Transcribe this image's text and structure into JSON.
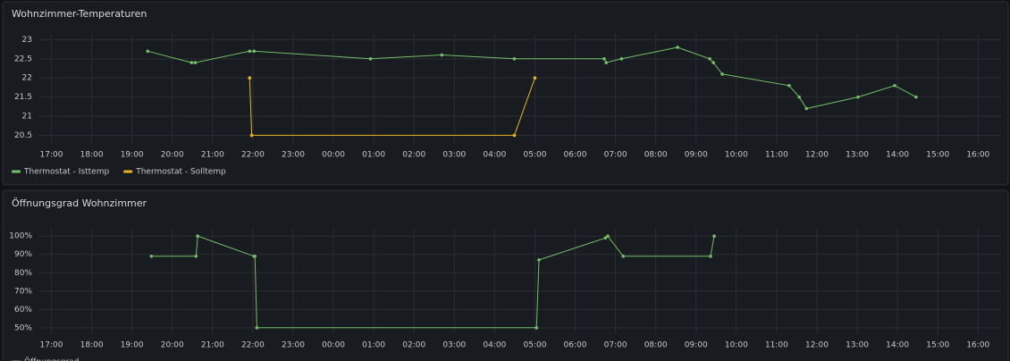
{
  "chart_data": [
    {
      "type": "line",
      "title": "Wohnzimmer-Temperaturen",
      "xlim": [
        16.7,
        40.57
      ],
      "xticks": [
        {
          "value": 17,
          "label": "17:00"
        },
        {
          "value": 18,
          "label": "18:00"
        },
        {
          "value": 19,
          "label": "19:00"
        },
        {
          "value": 20,
          "label": "20:00"
        },
        {
          "value": 21,
          "label": "21:00"
        },
        {
          "value": 22,
          "label": "22:00"
        },
        {
          "value": 23,
          "label": "23:00"
        },
        {
          "value": 24,
          "label": "00:00"
        },
        {
          "value": 25,
          "label": "01:00"
        },
        {
          "value": 26,
          "label": "02:00"
        },
        {
          "value": 27,
          "label": "03:00"
        },
        {
          "value": 28,
          "label": "04:00"
        },
        {
          "value": 29,
          "label": "05:00"
        },
        {
          "value": 30,
          "label": "06:00"
        },
        {
          "value": 31,
          "label": "07:00"
        },
        {
          "value": 32,
          "label": "08:00"
        },
        {
          "value": 33,
          "label": "09:00"
        },
        {
          "value": 34,
          "label": "10:00"
        },
        {
          "value": 35,
          "label": "11:00"
        },
        {
          "value": 36,
          "label": "12:00"
        },
        {
          "value": 37,
          "label": "13:00"
        },
        {
          "value": 38,
          "label": "14:00"
        },
        {
          "value": 39,
          "label": "15:00"
        },
        {
          "value": 40,
          "label": "16:00"
        }
      ],
      "ylim": [
        20.3,
        23.15
      ],
      "yticks": [
        20.5,
        21,
        21.5,
        22,
        22.5,
        23
      ],
      "grid": true,
      "legend": "bottom",
      "series": [
        {
          "name": "Thermostat - Isttemp",
          "color": "#73bf69",
          "x": [
            19.39,
            20.48,
            20.57,
            21.92,
            22.03,
            24.92,
            26.69,
            28.49,
            30.72,
            30.77,
            31.15,
            32.54,
            33.34,
            33.43,
            33.65,
            35.31,
            35.56,
            35.74,
            37.02,
            37.93,
            38.46
          ],
          "values": [
            22.7,
            22.4,
            22.4,
            22.7,
            22.7,
            22.5,
            22.6,
            22.5,
            22.5,
            22.4,
            22.5,
            22.8,
            22.5,
            22.4,
            22.1,
            21.8,
            21.5,
            21.2,
            21.5,
            21.8,
            21.5
          ]
        },
        {
          "name": "Thermostat - Solltemp",
          "color": "#e8b32a",
          "x": [
            21.92,
            21.97,
            28.49,
            29.0
          ],
          "values": [
            22,
            20.5,
            20.5,
            22
          ]
        }
      ]
    },
    {
      "type": "line",
      "title": "Öffnungsgrad Wohnzimmer",
      "xlim": [
        16.7,
        40.57
      ],
      "xticks": [
        {
          "value": 17,
          "label": "17:00"
        },
        {
          "value": 18,
          "label": "18:00"
        },
        {
          "value": 19,
          "label": "19:00"
        },
        {
          "value": 20,
          "label": "20:00"
        },
        {
          "value": 21,
          "label": "21:00"
        },
        {
          "value": 22,
          "label": "22:00"
        },
        {
          "value": 23,
          "label": "23:00"
        },
        {
          "value": 24,
          "label": "00:00"
        },
        {
          "value": 25,
          "label": "01:00"
        },
        {
          "value": 26,
          "label": "02:00"
        },
        {
          "value": 27,
          "label": "03:00"
        },
        {
          "value": 28,
          "label": "04:00"
        },
        {
          "value": 29,
          "label": "05:00"
        },
        {
          "value": 30,
          "label": "06:00"
        },
        {
          "value": 31,
          "label": "07:00"
        },
        {
          "value": 32,
          "label": "08:00"
        },
        {
          "value": 33,
          "label": "09:00"
        },
        {
          "value": 34,
          "label": "10:00"
        },
        {
          "value": 35,
          "label": "11:00"
        },
        {
          "value": 36,
          "label": "12:00"
        },
        {
          "value": 37,
          "label": "13:00"
        },
        {
          "value": 38,
          "label": "14:00"
        },
        {
          "value": 39,
          "label": "15:00"
        },
        {
          "value": 40,
          "label": "16:00"
        }
      ],
      "ylim": [
        47,
        104
      ],
      "yticks": [
        {
          "value": 50,
          "label": "50%"
        },
        {
          "value": 60,
          "label": "60%"
        },
        {
          "value": 70,
          "label": "70%"
        },
        {
          "value": 80,
          "label": "80%"
        },
        {
          "value": 90,
          "label": "90%"
        },
        {
          "value": 100,
          "label": "100%"
        }
      ],
      "grid": true,
      "legend": "bottom",
      "series": [
        {
          "name": "Öffnungsgrad",
          "color": "#73bf69",
          "x": [
            19.48,
            20.59,
            20.63,
            22.03,
            22.05,
            22.1,
            29.04,
            29.1,
            30.75,
            30.81,
            31.19,
            33.36,
            33.45
          ],
          "values": [
            89,
            89,
            100,
            89,
            89,
            50,
            50,
            87,
            99,
            100,
            89,
            89,
            100
          ]
        }
      ]
    }
  ]
}
